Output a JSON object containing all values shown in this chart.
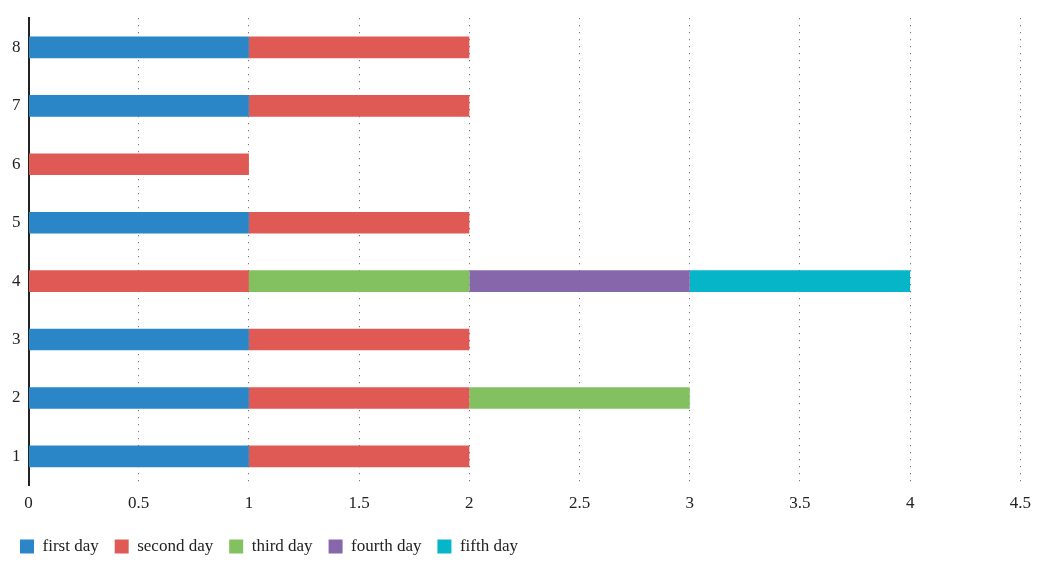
{
  "chart_data": {
    "type": "bar",
    "orientation": "horizontal",
    "stacked": true,
    "categories": [
      "8",
      "7",
      "6",
      "5",
      "4",
      "3",
      "2",
      "1"
    ],
    "series": [
      {
        "name": "first day",
        "color": "#2a86c6",
        "values": [
          1,
          1,
          null,
          1,
          null,
          1,
          1,
          1
        ]
      },
      {
        "name": "second day",
        "color": "#e05a55",
        "values": [
          1,
          1,
          1,
          1,
          1,
          1,
          1,
          1
        ]
      },
      {
        "name": "third day",
        "color": "#82c060",
        "values": [
          null,
          null,
          null,
          null,
          1,
          null,
          1,
          null
        ]
      },
      {
        "name": "fourth day",
        "color": "#8767ab",
        "values": [
          null,
          null,
          null,
          null,
          1,
          null,
          null,
          null
        ]
      },
      {
        "name": "fifth day",
        "color": "#06b5c8",
        "values": [
          null,
          null,
          null,
          null,
          1,
          null,
          null,
          null
        ]
      }
    ],
    "xlim": [
      0,
      4.5
    ],
    "xticks": [
      0,
      0.5,
      1,
      1.5,
      2,
      2.5,
      3,
      3.5,
      4,
      4.5
    ],
    "grid": "x",
    "legend": "bottom"
  }
}
